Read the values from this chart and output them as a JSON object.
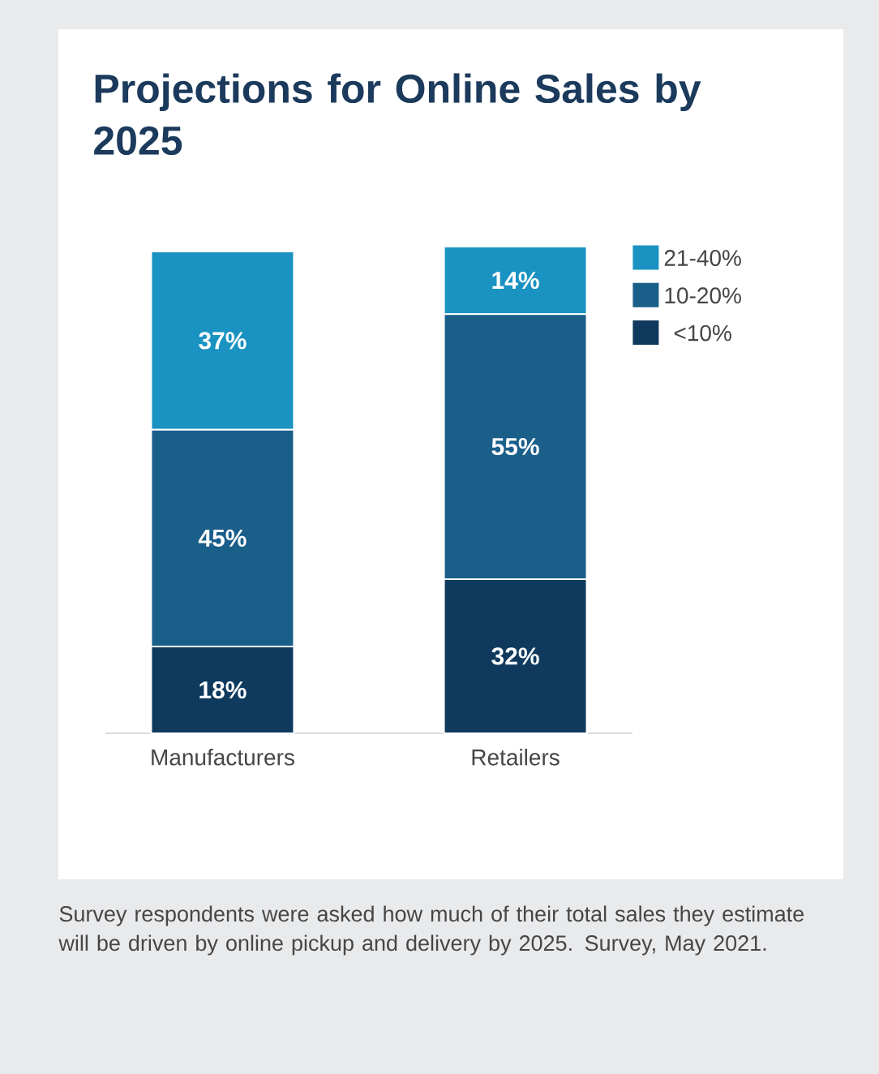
{
  "chart_data": {
    "type": "bar",
    "stacked": true,
    "title": "Projections for Online Sales by 2025",
    "categories": [
      "Manufacturers",
      "Retailers"
    ],
    "series": [
      {
        "name": "<10%",
        "color": "#0f3a5e",
        "values": [
          18,
          32
        ],
        "value_labels": [
          "18%",
          "32%"
        ]
      },
      {
        "name": "10-20%",
        "color": "#1a5e8a",
        "values": [
          45,
          55
        ],
        "value_labels": [
          "45%",
          "55%"
        ]
      },
      {
        "name": "21-40%",
        "color": "#1a93c2",
        "values": [
          37,
          14
        ],
        "value_labels": [
          "37%",
          "14%"
        ]
      }
    ],
    "legend": "right",
    "annotations": [
      "Survey respondents were asked how much of their total sales they estimate will be driven by online pickup and delivery by 2025. Survey, May 2021."
    ]
  }
}
